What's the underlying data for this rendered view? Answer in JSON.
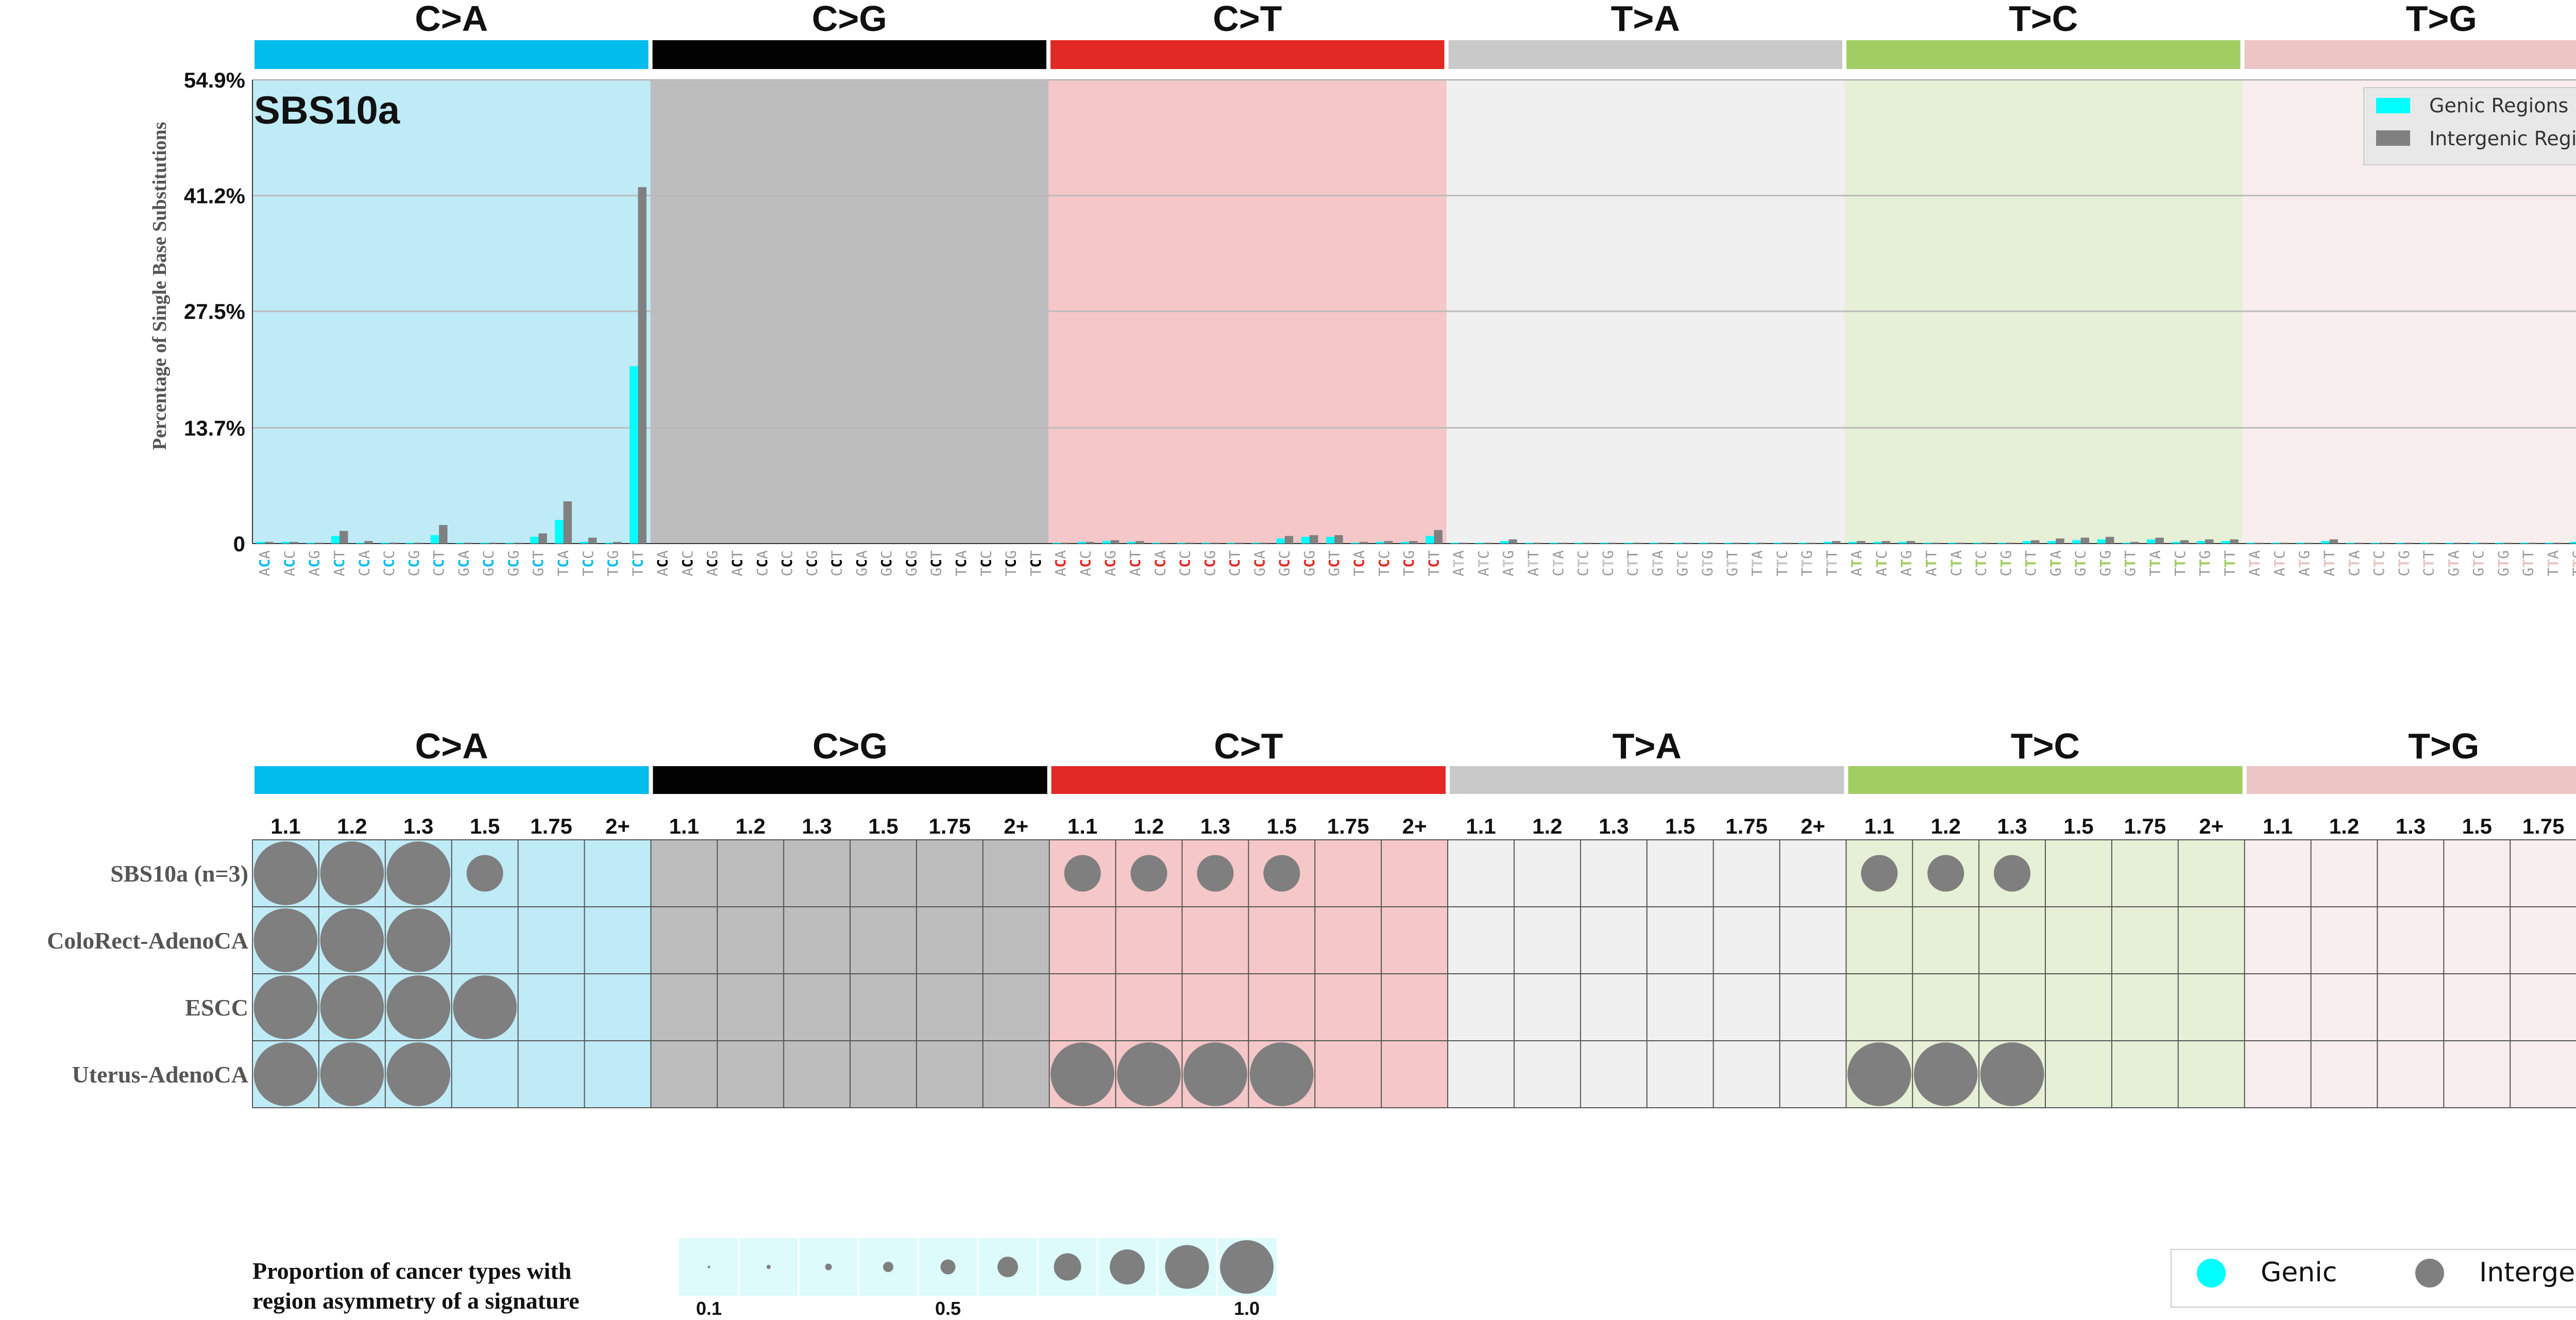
{
  "colors": {
    "C>A": "#03BCEE",
    "C>G": "#010101",
    "C>T": "#E32926",
    "T>A": "#CAC9C9",
    "T>C": "#A1CE63",
    "T>G": "#EBC6C4",
    "bg_C>A": "#BFEBF7",
    "bg_C>G": "#BDBDBD",
    "bg_C>T": "#F6C7C8",
    "bg_T>A": "#F0F0F0",
    "bg_T>C": "#E5F0D6",
    "bg_T>G": "#F8EEED",
    "genic": "#00FFFF",
    "intergenic": "#808080",
    "bubble": "#7F7F7F",
    "legend_strip": "#DDFBFB"
  },
  "mutation_types": [
    "C>A",
    "C>G",
    "C>T",
    "T>A",
    "T>C",
    "T>G"
  ],
  "contexts": [
    "A_A",
    "A_C",
    "A_G",
    "A_T",
    "C_A",
    "C_C",
    "C_G",
    "C_T",
    "G_A",
    "G_C",
    "G_G",
    "G_T",
    "T_A",
    "T_C",
    "T_G",
    "T_T"
  ],
  "chart_data": [
    {
      "type": "bar",
      "title": "SBS10a",
      "ylabel": "Percentage of Single Base Substitutions",
      "ylim": [
        0,
        54.9
      ],
      "yticks": [
        "0",
        "13.7%",
        "27.5%",
        "41.2%",
        "54.9%"
      ],
      "ytick_values": [
        0,
        13.7,
        27.5,
        41.2,
        54.9
      ],
      "categories_note": "96 trinucleotide contexts: for each mutation type, 16 contexts (5' base, mutated base, 3' base)",
      "series": [
        {
          "name": "Genic Regions",
          "values": [
            0.2,
            0.2,
            0.1,
            0.9,
            0.1,
            0.1,
            0.1,
            1.0,
            0.1,
            0.1,
            0.1,
            0.8,
            2.8,
            0.2,
            0.1,
            21.0,
            0,
            0,
            0,
            0,
            0,
            0,
            0,
            0,
            0,
            0,
            0,
            0,
            0,
            0,
            0,
            0,
            0.1,
            0.2,
            0.3,
            0.2,
            0.1,
            0.1,
            0.1,
            0.1,
            0.1,
            0.6,
            0.8,
            0.8,
            0.1,
            0.2,
            0.2,
            0.9,
            0.1,
            0.1,
            0.3,
            0.1,
            0.1,
            0.1,
            0.1,
            0.1,
            0.1,
            0.1,
            0.1,
            0.1,
            0.1,
            0.1,
            0.1,
            0.2,
            0.2,
            0.2,
            0.2,
            0.1,
            0.1,
            0.1,
            0.1,
            0.3,
            0.3,
            0.4,
            0.5,
            0.1,
            0.5,
            0.2,
            0.3,
            0.3,
            0.1,
            0.1,
            0.1,
            0.3,
            0.1,
            0.1,
            0.1,
            0.1,
            0.1,
            0.1,
            0.1,
            0.1,
            0.1,
            0.2,
            0.1,
            0.6
          ]
        },
        {
          "name": "Intergenic Regions",
          "values": [
            0.2,
            0.2,
            0.1,
            1.5,
            0.3,
            0.1,
            0.1,
            2.2,
            0.1,
            0.1,
            0.1,
            1.2,
            5.0,
            0.7,
            0.2,
            42.2,
            0,
            0,
            0,
            0,
            0,
            0,
            0,
            0,
            0,
            0,
            0,
            0,
            0,
            0,
            0,
            0,
            0.1,
            0.2,
            0.4,
            0.3,
            0.1,
            0.1,
            0.1,
            0.1,
            0.1,
            0.9,
            1.0,
            1.0,
            0.2,
            0.3,
            0.3,
            1.6,
            0.1,
            0.1,
            0.5,
            0.1,
            0.1,
            0.1,
            0.1,
            0.1,
            0.1,
            0.1,
            0.1,
            0.1,
            0.1,
            0.1,
            0.1,
            0.3,
            0.3,
            0.3,
            0.3,
            0.1,
            0.1,
            0.1,
            0.1,
            0.4,
            0.6,
            0.7,
            0.8,
            0.2,
            0.7,
            0.4,
            0.5,
            0.5,
            0.1,
            0.1,
            0.1,
            0.5,
            0.1,
            0.1,
            0.1,
            0.1,
            0.1,
            0.1,
            0.1,
            0.1,
            0.1,
            0.3,
            0.1,
            1.2
          ]
        }
      ]
    },
    {
      "type": "scatter",
      "columns": [
        "1.1",
        "1.2",
        "1.3",
        "1.5",
        "1.75",
        "2+"
      ],
      "rows": [
        "SBS10a (n=3)",
        "ColoRect-AdenoCA",
        "ESCC",
        "Uterus-AdenoCA"
      ],
      "bubbles": [
        {
          "row": 0,
          "type": "C>A",
          "col": 0,
          "value": 1.0
        },
        {
          "row": 0,
          "type": "C>A",
          "col": 1,
          "value": 1.0
        },
        {
          "row": 0,
          "type": "C>A",
          "col": 2,
          "value": 1.0
        },
        {
          "row": 0,
          "type": "C>A",
          "col": 3,
          "value": 0.33
        },
        {
          "row": 0,
          "type": "C>T",
          "col": 0,
          "value": 0.33
        },
        {
          "row": 0,
          "type": "C>T",
          "col": 1,
          "value": 0.33
        },
        {
          "row": 0,
          "type": "C>T",
          "col": 2,
          "value": 0.33
        },
        {
          "row": 0,
          "type": "C>T",
          "col": 3,
          "value": 0.33
        },
        {
          "row": 0,
          "type": "T>C",
          "col": 0,
          "value": 0.33
        },
        {
          "row": 0,
          "type": "T>C",
          "col": 1,
          "value": 0.33
        },
        {
          "row": 0,
          "type": "T>C",
          "col": 2,
          "value": 0.33
        },
        {
          "row": 1,
          "type": "C>A",
          "col": 0,
          "value": 1.0
        },
        {
          "row": 1,
          "type": "C>A",
          "col": 1,
          "value": 1.0
        },
        {
          "row": 1,
          "type": "C>A",
          "col": 2,
          "value": 1.0
        },
        {
          "row": 2,
          "type": "C>A",
          "col": 0,
          "value": 1.0
        },
        {
          "row": 2,
          "type": "C>A",
          "col": 1,
          "value": 1.0
        },
        {
          "row": 2,
          "type": "C>A",
          "col": 2,
          "value": 1.0
        },
        {
          "row": 2,
          "type": "C>A",
          "col": 3,
          "value": 1.0
        },
        {
          "row": 3,
          "type": "C>A",
          "col": 0,
          "value": 1.0
        },
        {
          "row": 3,
          "type": "C>A",
          "col": 1,
          "value": 1.0
        },
        {
          "row": 3,
          "type": "C>A",
          "col": 2,
          "value": 1.0
        },
        {
          "row": 3,
          "type": "C>T",
          "col": 0,
          "value": 1.0
        },
        {
          "row": 3,
          "type": "C>T",
          "col": 1,
          "value": 1.0
        },
        {
          "row": 3,
          "type": "C>T",
          "col": 2,
          "value": 1.0
        },
        {
          "row": 3,
          "type": "C>T",
          "col": 3,
          "value": 1.0
        },
        {
          "row": 3,
          "type": "T>C",
          "col": 0,
          "value": 1.0
        },
        {
          "row": 3,
          "type": "T>C",
          "col": 1,
          "value": 1.0
        },
        {
          "row": 3,
          "type": "T>C",
          "col": 2,
          "value": 1.0
        }
      ],
      "size_legend": {
        "title_line1": "Proportion of cancer types with",
        "title_line2": "region asymmetry of a signature",
        "values": [
          0.1,
          0.2,
          0.3,
          0.4,
          0.5,
          0.6,
          0.7,
          0.8,
          0.9,
          1.0
        ],
        "tick_labels": [
          "0.1",
          "0.5",
          "1.0"
        ]
      },
      "color_legend": [
        "Genic",
        "Intergenic"
      ]
    }
  ]
}
